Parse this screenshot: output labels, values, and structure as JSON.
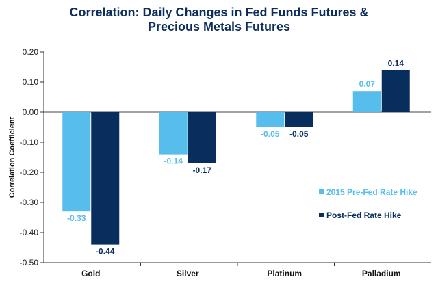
{
  "chart_data": {
    "type": "bar",
    "title_lines": [
      "Correlation: Daily Changes in Fed Funds Futures &",
      "Precious Metals Futures"
    ],
    "ylabel": "Correlation Coefficient",
    "xlabel": "",
    "categories": [
      "Gold",
      "Silver",
      "Platinum",
      "Palladium"
    ],
    "ylim": [
      -0.5,
      0.2
    ],
    "yticks": [
      0.2,
      0.1,
      0.0,
      -0.1,
      -0.2,
      -0.3,
      -0.4,
      -0.5
    ],
    "ytick_labels": [
      "0.20",
      "0.10",
      "0.00",
      "-0.10",
      "-0.20",
      "-0.30",
      "-0.40",
      "-0.50"
    ],
    "grid": false,
    "legend_position": "right",
    "series": [
      {
        "name": "2015 Pre-Fed Rate Hike",
        "color": "#56bdec",
        "values": [
          -0.33,
          -0.14,
          -0.05,
          0.07
        ],
        "labels": [
          "-0.33",
          "-0.14",
          "-0.05",
          "0.07"
        ]
      },
      {
        "name": "Post-Fed Rate Hike",
        "color": "#082e5e",
        "values": [
          -0.44,
          -0.17,
          -0.05,
          0.14
        ],
        "labels": [
          "-0.44",
          "-0.17",
          "-0.05",
          "0.14"
        ]
      }
    ]
  }
}
